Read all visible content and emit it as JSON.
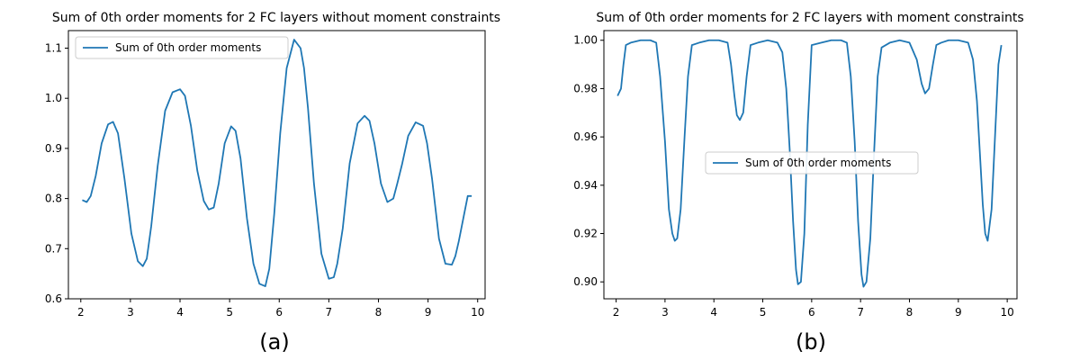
{
  "chart_data": [
    {
      "type": "line",
      "title": "Sum of 0th order moments for 2 FC layers without moment constraints",
      "panel_label": "(a)",
      "xlim": [
        1.75,
        10.15
      ],
      "ylim": [
        0.6,
        1.135
      ],
      "xticks": [
        "2",
        "3",
        "4",
        "5",
        "6",
        "7",
        "8",
        "9",
        "10"
      ],
      "yticks": [
        "0.6",
        "0.7",
        "0.8",
        "0.9",
        "1.0",
        "1.1"
      ],
      "legend": {
        "label": "Sum of 0th order moments",
        "position": "upper left"
      },
      "series": [
        {
          "name": "Sum of 0th order moments",
          "color": "#1f77b4",
          "x": [
            2.03,
            2.12,
            2.2,
            2.3,
            2.42,
            2.55,
            2.65,
            2.75,
            2.88,
            3.02,
            3.15,
            3.25,
            3.33,
            3.42,
            3.55,
            3.7,
            3.85,
            4.0,
            4.1,
            4.22,
            4.35,
            4.48,
            4.58,
            4.68,
            4.78,
            4.9,
            5.03,
            5.12,
            5.22,
            5.35,
            5.48,
            5.6,
            5.72,
            5.8,
            5.9,
            6.02,
            6.15,
            6.3,
            6.43,
            6.5,
            6.58,
            6.7,
            6.85,
            7.0,
            7.1,
            7.17,
            7.28,
            7.42,
            7.58,
            7.72,
            7.82,
            7.92,
            8.05,
            8.18,
            8.3,
            8.38,
            8.48,
            8.6,
            8.75,
            8.9,
            8.98,
            9.08,
            9.22,
            9.35,
            9.48,
            9.55,
            9.62,
            9.72,
            9.8,
            9.88
          ],
          "y": [
            0.797,
            0.793,
            0.805,
            0.845,
            0.91,
            0.948,
            0.953,
            0.93,
            0.84,
            0.73,
            0.675,
            0.665,
            0.68,
            0.745,
            0.865,
            0.975,
            1.012,
            1.018,
            1.005,
            0.945,
            0.855,
            0.795,
            0.778,
            0.782,
            0.83,
            0.91,
            0.944,
            0.935,
            0.88,
            0.76,
            0.67,
            0.63,
            0.625,
            0.66,
            0.77,
            0.93,
            1.06,
            1.117,
            1.1,
            1.06,
            0.98,
            0.83,
            0.69,
            0.64,
            0.643,
            0.67,
            0.74,
            0.87,
            0.95,
            0.965,
            0.955,
            0.91,
            0.83,
            0.793,
            0.8,
            0.83,
            0.87,
            0.925,
            0.952,
            0.945,
            0.91,
            0.84,
            0.72,
            0.67,
            0.668,
            0.685,
            0.715,
            0.765,
            0.805,
            0.805
          ]
        }
      ]
    },
    {
      "type": "line",
      "title": "Sum of 0th order moments for 2 FC layers with moment constraints",
      "panel_label": "(b)",
      "xlim": [
        1.75,
        10.2
      ],
      "ylim": [
        0.893,
        1.004
      ],
      "xticks": [
        "2",
        "3",
        "4",
        "5",
        "6",
        "7",
        "8",
        "9",
        "10"
      ],
      "yticks": [
        "0.90",
        "0.92",
        "0.94",
        "0.96",
        "0.98",
        "1.00"
      ],
      "legend": {
        "label": "Sum of 0th order moments",
        "position": "center"
      },
      "series": [
        {
          "name": "Sum of 0th order moments",
          "color": "#1f77b4",
          "x": [
            2.03,
            2.1,
            2.15,
            2.2,
            2.3,
            2.5,
            2.7,
            2.82,
            2.9,
            3.0,
            3.08,
            3.15,
            3.2,
            3.25,
            3.32,
            3.4,
            3.47,
            3.55,
            3.7,
            3.9,
            4.1,
            4.28,
            4.35,
            4.42,
            4.47,
            4.53,
            4.6,
            4.67,
            4.75,
            4.9,
            5.1,
            5.3,
            5.4,
            5.48,
            5.55,
            5.62,
            5.68,
            5.72,
            5.78,
            5.85,
            5.92,
            6.0,
            6.2,
            6.4,
            6.6,
            6.72,
            6.8,
            6.88,
            6.95,
            7.02,
            7.06,
            7.12,
            7.2,
            7.28,
            7.35,
            7.43,
            7.6,
            7.8,
            8.0,
            8.15,
            8.25,
            8.32,
            8.4,
            8.48,
            8.55,
            8.65,
            8.8,
            9.0,
            9.2,
            9.3,
            9.38,
            9.45,
            9.5,
            9.55,
            9.6,
            9.68,
            9.75,
            9.82,
            9.88
          ],
          "y": [
            0.977,
            0.98,
            0.99,
            0.998,
            0.999,
            1.0,
            1.0,
            0.999,
            0.985,
            0.958,
            0.93,
            0.92,
            0.917,
            0.918,
            0.93,
            0.96,
            0.985,
            0.998,
            0.999,
            1.0,
            1.0,
            0.999,
            0.99,
            0.977,
            0.969,
            0.967,
            0.97,
            0.985,
            0.998,
            0.999,
            1.0,
            0.999,
            0.995,
            0.98,
            0.955,
            0.925,
            0.905,
            0.899,
            0.9,
            0.92,
            0.965,
            0.998,
            0.999,
            1.0,
            1.0,
            0.999,
            0.985,
            0.958,
            0.925,
            0.903,
            0.898,
            0.9,
            0.918,
            0.955,
            0.985,
            0.997,
            0.999,
            1.0,
            0.999,
            0.992,
            0.982,
            0.978,
            0.98,
            0.99,
            0.998,
            0.999,
            1.0,
            1.0,
            0.999,
            0.992,
            0.975,
            0.95,
            0.932,
            0.92,
            0.917,
            0.93,
            0.96,
            0.99,
            0.998
          ]
        }
      ]
    }
  ]
}
